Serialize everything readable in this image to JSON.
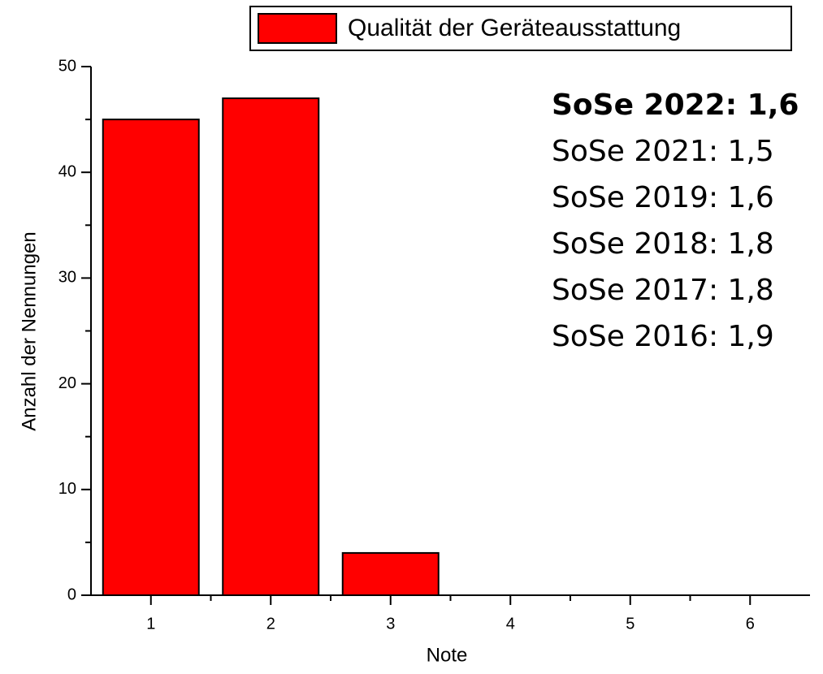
{
  "chart_data": {
    "type": "bar",
    "categories": [
      "1",
      "2",
      "3",
      "4",
      "5",
      "6"
    ],
    "series": [
      {
        "name": "Qualität der Geräteausstattung",
        "color": "#ff0000",
        "values": [
          45,
          47,
          4,
          0,
          0,
          0
        ]
      }
    ],
    "ylim": [
      0,
      50
    ],
    "yticks": [
      0,
      10,
      20,
      30,
      40,
      50
    ],
    "xlabel": "Note",
    "ylabel": "Anzahl der Nennungen",
    "legend": "top",
    "annotations": [
      {
        "text": "SoSe 2022: 1,6",
        "color": "#ff0000",
        "bold": true
      },
      {
        "text": "SoSe 2021: 1,5",
        "color": "#000000",
        "bold": false
      },
      {
        "text": "SoSe 2019: 1,6",
        "color": "#000000",
        "bold": false
      },
      {
        "text": "SoSe 2018: 1,8",
        "color": "#000000",
        "bold": false
      },
      {
        "text": "SoSe 2017: 1,8",
        "color": "#000000",
        "bold": false
      },
      {
        "text": "SoSe 2016: 1,9",
        "color": "#000000",
        "bold": false
      }
    ],
    "grid": false
  }
}
